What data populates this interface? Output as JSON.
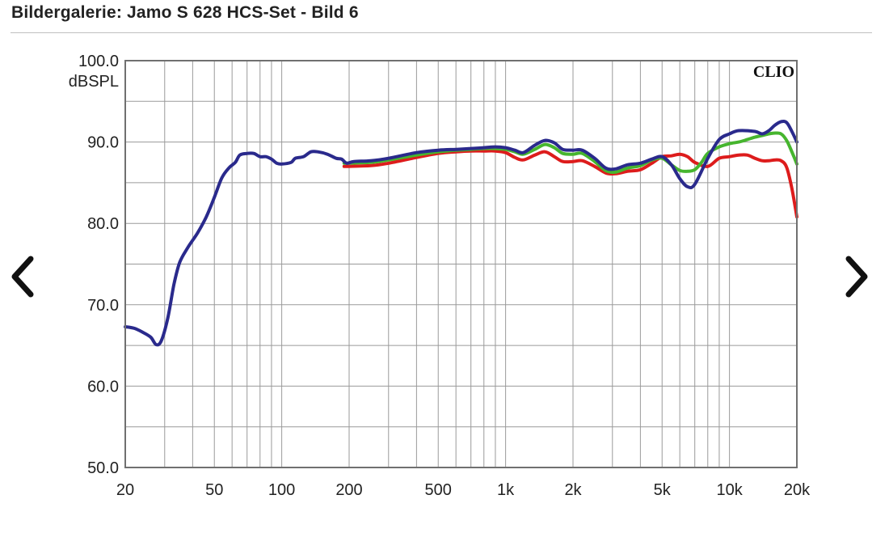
{
  "page": {
    "title": "Bildergalerie: Jamo S 628 HCS-Set - Bild 6"
  },
  "nav": {
    "prev_icon": "chevron-left-icon",
    "next_icon": "chevron-right-icon"
  },
  "chart_data": {
    "type": "line",
    "brand": "CLIO",
    "ylabel": "dBSPL",
    "xscale": "log",
    "xlim": [
      20,
      20000
    ],
    "ylim": [
      50,
      100
    ],
    "grid": true,
    "y_ticks": [
      {
        "value": 100,
        "label": "100.0"
      },
      {
        "value": 90,
        "label": "90.0"
      },
      {
        "value": 80,
        "label": "80.0"
      },
      {
        "value": 70,
        "label": "70.0"
      },
      {
        "value": 60,
        "label": "60.0"
      },
      {
        "value": 50,
        "label": "50.0"
      }
    ],
    "x_ticks": [
      {
        "value": 20,
        "label": "20"
      },
      {
        "value": 50,
        "label": "50"
      },
      {
        "value": 100,
        "label": "100"
      },
      {
        "value": 200,
        "label": "200"
      },
      {
        "value": 500,
        "label": "500"
      },
      {
        "value": 1000,
        "label": "1k"
      },
      {
        "value": 2000,
        "label": "2k"
      },
      {
        "value": 5000,
        "label": "5k"
      },
      {
        "value": 10000,
        "label": "10k"
      },
      {
        "value": 20000,
        "label": "20k"
      }
    ],
    "series": [
      {
        "color": "#2a2a8c",
        "points": [
          [
            20,
            67.3
          ],
          [
            22,
            67.1
          ],
          [
            24,
            66.6
          ],
          [
            26,
            66.0
          ],
          [
            27.5,
            65.1
          ],
          [
            29,
            65.6
          ],
          [
            31,
            68.4
          ],
          [
            33,
            72.5
          ],
          [
            35,
            75.2
          ],
          [
            38,
            77.0
          ],
          [
            42,
            78.8
          ],
          [
            46,
            80.8
          ],
          [
            50,
            83.2
          ],
          [
            54,
            85.6
          ],
          [
            58,
            86.8
          ],
          [
            62,
            87.5
          ],
          [
            65,
            88.4
          ],
          [
            70,
            88.6
          ],
          [
            75,
            88.6
          ],
          [
            80,
            88.2
          ],
          [
            85,
            88.2
          ],
          [
            90,
            87.9
          ],
          [
            95,
            87.4
          ],
          [
            100,
            87.3
          ],
          [
            110,
            87.5
          ],
          [
            115,
            88.0
          ],
          [
            125,
            88.2
          ],
          [
            135,
            88.8
          ],
          [
            145,
            88.8
          ],
          [
            160,
            88.5
          ],
          [
            175,
            88.0
          ],
          [
            185,
            87.9
          ],
          [
            195,
            87.4
          ],
          [
            210,
            87.6
          ],
          [
            250,
            87.7
          ],
          [
            300,
            88.0
          ],
          [
            400,
            88.7
          ],
          [
            500,
            89.0
          ],
          [
            600,
            89.1
          ],
          [
            700,
            89.2
          ],
          [
            800,
            89.3
          ],
          [
            900,
            89.4
          ],
          [
            1000,
            89.3
          ],
          [
            1100,
            89.0
          ],
          [
            1200,
            88.7
          ],
          [
            1350,
            89.6
          ],
          [
            1500,
            90.2
          ],
          [
            1650,
            89.9
          ],
          [
            1800,
            89.1
          ],
          [
            2000,
            89.0
          ],
          [
            2200,
            89.0
          ],
          [
            2500,
            88.0
          ],
          [
            2800,
            86.8
          ],
          [
            3100,
            86.7
          ],
          [
            3500,
            87.2
          ],
          [
            4000,
            87.4
          ],
          [
            4500,
            87.9
          ],
          [
            5000,
            88.2
          ],
          [
            5500,
            87.2
          ],
          [
            6000,
            85.5
          ],
          [
            6500,
            84.5
          ],
          [
            7000,
            84.8
          ],
          [
            8000,
            88.0
          ],
          [
            9000,
            90.3
          ],
          [
            10000,
            91.0
          ],
          [
            11000,
            91.4
          ],
          [
            13000,
            91.3
          ],
          [
            14000,
            91.0
          ],
          [
            15000,
            91.4
          ],
          [
            16000,
            92.1
          ],
          [
            17000,
            92.5
          ],
          [
            18000,
            92.4
          ],
          [
            19000,
            91.3
          ],
          [
            20000,
            90.0
          ]
        ]
      },
      {
        "color": "#46b52e",
        "points": [
          [
            190,
            87.4
          ],
          [
            250,
            87.5
          ],
          [
            300,
            87.8
          ],
          [
            400,
            88.4
          ],
          [
            500,
            88.8
          ],
          [
            600,
            89.0
          ],
          [
            700,
            89.1
          ],
          [
            800,
            89.2
          ],
          [
            900,
            89.2
          ],
          [
            1000,
            89.1
          ],
          [
            1100,
            88.8
          ],
          [
            1200,
            88.5
          ],
          [
            1350,
            89.1
          ],
          [
            1500,
            89.7
          ],
          [
            1650,
            89.3
          ],
          [
            1800,
            88.6
          ],
          [
            2000,
            88.5
          ],
          [
            2200,
            88.6
          ],
          [
            2500,
            87.6
          ],
          [
            2800,
            86.5
          ],
          [
            3100,
            86.3
          ],
          [
            3500,
            86.8
          ],
          [
            4000,
            87.1
          ],
          [
            4500,
            87.8
          ],
          [
            5000,
            88.0
          ],
          [
            5500,
            87.2
          ],
          [
            6000,
            86.5
          ],
          [
            6500,
            86.4
          ],
          [
            7000,
            86.6
          ],
          [
            7500,
            87.5
          ],
          [
            8000,
            88.6
          ],
          [
            9000,
            89.4
          ],
          [
            10000,
            89.8
          ],
          [
            11000,
            90.0
          ],
          [
            12000,
            90.3
          ],
          [
            13000,
            90.6
          ],
          [
            14000,
            90.8
          ],
          [
            15000,
            91.0
          ],
          [
            16000,
            91.1
          ],
          [
            17000,
            91.0
          ],
          [
            18000,
            90.2
          ],
          [
            19000,
            88.8
          ],
          [
            20000,
            87.3
          ]
        ]
      },
      {
        "color": "#dd1c1c",
        "points": [
          [
            190,
            87.0
          ],
          [
            250,
            87.1
          ],
          [
            300,
            87.4
          ],
          [
            400,
            88.1
          ],
          [
            500,
            88.6
          ],
          [
            600,
            88.8
          ],
          [
            700,
            88.9
          ],
          [
            800,
            88.9
          ],
          [
            900,
            88.9
          ],
          [
            1000,
            88.7
          ],
          [
            1100,
            88.1
          ],
          [
            1200,
            87.8
          ],
          [
            1350,
            88.4
          ],
          [
            1500,
            88.8
          ],
          [
            1650,
            88.2
          ],
          [
            1800,
            87.6
          ],
          [
            2000,
            87.6
          ],
          [
            2200,
            87.7
          ],
          [
            2500,
            87.0
          ],
          [
            2800,
            86.2
          ],
          [
            3100,
            86.1
          ],
          [
            3500,
            86.4
          ],
          [
            4000,
            86.6
          ],
          [
            4500,
            87.4
          ],
          [
            5000,
            88.2
          ],
          [
            5500,
            88.3
          ],
          [
            6000,
            88.5
          ],
          [
            6500,
            88.2
          ],
          [
            7000,
            87.5
          ],
          [
            8000,
            87.0
          ],
          [
            9000,
            88.0
          ],
          [
            10000,
            88.2
          ],
          [
            11000,
            88.4
          ],
          [
            12000,
            88.4
          ],
          [
            13000,
            88.0
          ],
          [
            14000,
            87.7
          ],
          [
            15000,
            87.7
          ],
          [
            16000,
            87.8
          ],
          [
            17000,
            87.7
          ],
          [
            18000,
            86.9
          ],
          [
            19000,
            84.3
          ],
          [
            20000,
            80.8
          ]
        ]
      }
    ]
  }
}
